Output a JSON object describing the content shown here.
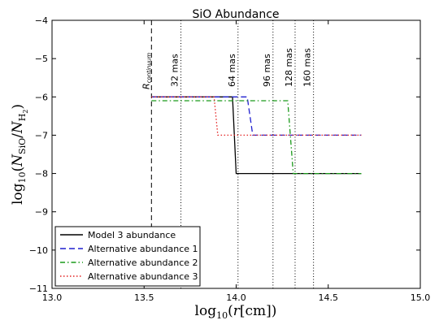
{
  "chart_data": {
    "type": "line",
    "title": "SiO Abundance",
    "xlabel": "log10(r[cm])",
    "ylabel": "log10(NSiO/NH2)",
    "xlim": [
      13.0,
      15.0
    ],
    "ylim": [
      -11,
      -4
    ],
    "xticks": [
      13.0,
      13.5,
      14.0,
      14.5,
      15.0
    ],
    "xtick_labels": [
      "13.0",
      "13.5",
      "14.0",
      "14.5",
      "15.0"
    ],
    "yticks": [
      -11,
      -10,
      -9,
      -8,
      -7,
      -6,
      -5,
      -4
    ],
    "ytick_labels": [
      "−11",
      "−10",
      "−9",
      "−8",
      "−7",
      "−6",
      "−5",
      "−4"
    ],
    "grid": false,
    "legend_position": "lower-left",
    "series": [
      {
        "name": "Model 3 abundance",
        "color": "#000000",
        "dash": "solid",
        "x": [
          13.54,
          13.98,
          14.0,
          14.68
        ],
        "y": [
          -6.0,
          -6.0,
          -8.0,
          -8.0
        ]
      },
      {
        "name": "Alternative abundance 1",
        "color": "#1f1fcf",
        "dash": "dashed",
        "x": [
          13.54,
          14.06,
          14.09,
          14.68
        ],
        "y": [
          -6.0,
          -6.0,
          -7.0,
          -7.0
        ]
      },
      {
        "name": "Alternative abundance 2",
        "color": "#1a9a1a",
        "dash": "dashdot",
        "x": [
          13.54,
          14.28,
          14.31,
          14.68
        ],
        "y": [
          -6.1,
          -6.1,
          -8.0,
          -8.0
        ]
      },
      {
        "name": "Alternative abundance 3",
        "color": "#e32222",
        "dash": "dotted",
        "x": [
          13.54,
          13.88,
          13.9,
          14.68
        ],
        "y": [
          -6.0,
          -6.0,
          -7.0,
          -7.0
        ]
      }
    ],
    "vlines": [
      {
        "x": 13.54,
        "label": "Rcontinuum",
        "style": "dashed"
      },
      {
        "x": 13.7,
        "label": "32 mas",
        "style": "dotted"
      },
      {
        "x": 14.01,
        "label": "64 mas",
        "style": "dotted"
      },
      {
        "x": 14.2,
        "label": "96 mas",
        "style": "dotted"
      },
      {
        "x": 14.32,
        "label": "128 mas",
        "style": "dotted"
      },
      {
        "x": 14.42,
        "label": "160 mas",
        "style": "dotted"
      }
    ]
  }
}
